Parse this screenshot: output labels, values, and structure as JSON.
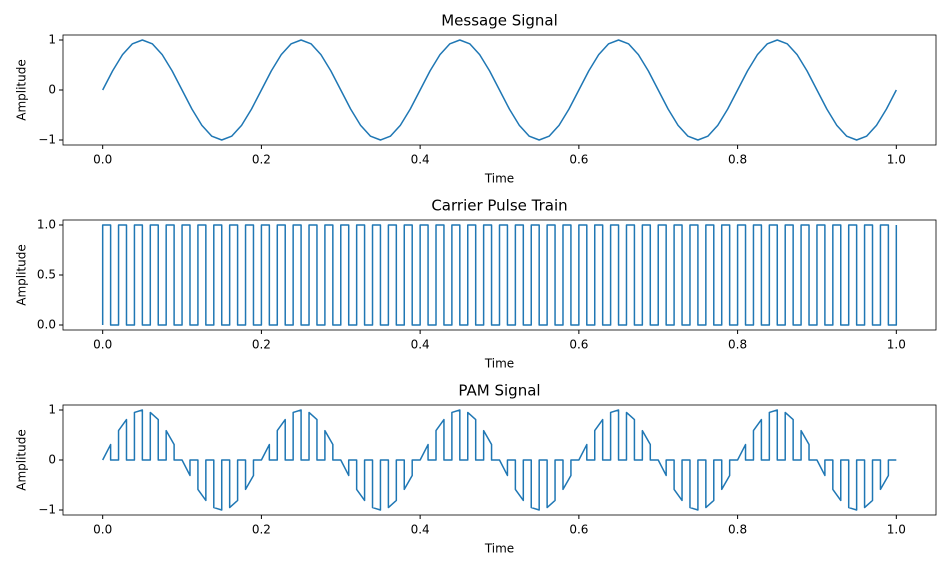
{
  "chart_data": [
    {
      "type": "line",
      "title": "Message Signal",
      "x_label": "Time",
      "y_label": "Amplitude",
      "xlim": [
        -0.05,
        1.05
      ],
      "ylim": [
        -1.1,
        1.1
      ],
      "xticks": [
        {
          "value": 0,
          "label": "0.0"
        },
        {
          "value": 0.2,
          "label": "0.2"
        },
        {
          "value": 0.4,
          "label": "0.4"
        },
        {
          "value": 0.6,
          "label": "0.6"
        },
        {
          "value": 0.8,
          "label": "0.8"
        },
        {
          "value": 1,
          "label": "1.0"
        }
      ],
      "yticks": [
        {
          "value": -1,
          "label": "−1"
        },
        0,
        1
      ],
      "color": "#1f77b4",
      "x": [
        0,
        0.0125,
        0.025,
        0.0375,
        0.05,
        0.0625,
        0.075,
        0.0875,
        0.1,
        0.1125,
        0.125,
        0.1375,
        0.15,
        0.1625,
        0.175,
        0.1875,
        0.2,
        0.2125,
        0.225,
        0.2375,
        0.25,
        0.2625,
        0.275,
        0.2875,
        0.3,
        0.3125,
        0.325,
        0.3375,
        0.35,
        0.3625,
        0.375,
        0.3875,
        0.4,
        0.4125,
        0.425,
        0.4375,
        0.45,
        0.4625,
        0.475,
        0.4875,
        0.5,
        0.5125,
        0.525,
        0.5375,
        0.55,
        0.5625,
        0.575,
        0.5875,
        0.6,
        0.6125,
        0.625,
        0.6375,
        0.65,
        0.6625,
        0.675,
        0.6875,
        0.7,
        0.7125,
        0.725,
        0.7375,
        0.75,
        0.7625,
        0.775,
        0.7875,
        0.8,
        0.8125,
        0.825,
        0.8375,
        0.85,
        0.8625,
        0.875,
        0.8875,
        0.9,
        0.9125,
        0.925,
        0.9375,
        0.95,
        0.9625,
        0.975,
        0.9875,
        1
      ],
      "values": [
        0,
        0.383,
        0.707,
        0.924,
        1,
        0.924,
        0.707,
        0.383,
        0,
        -0.383,
        -0.707,
        -0.924,
        -1,
        -0.924,
        -0.707,
        -0.383,
        0,
        0.383,
        0.707,
        0.924,
        1,
        0.924,
        0.707,
        0.383,
        0,
        -0.383,
        -0.707,
        -0.924,
        -1,
        -0.924,
        -0.707,
        -0.383,
        0,
        0.383,
        0.707,
        0.924,
        1,
        0.924,
        0.707,
        0.383,
        0,
        -0.383,
        -0.707,
        -0.924,
        -1,
        -0.924,
        -0.707,
        -0.383,
        0,
        0.383,
        0.707,
        0.924,
        1,
        0.924,
        0.707,
        0.383,
        0,
        -0.383,
        -0.707,
        -0.924,
        -1,
        -0.924,
        -0.707,
        -0.383,
        0,
        0.383,
        0.707,
        0.924,
        1,
        0.924,
        0.707,
        0.383,
        0,
        -0.383,
        -0.707,
        -0.924,
        -1,
        -0.924,
        -0.707,
        -0.383,
        0
      ]
    },
    {
      "type": "line",
      "title": "Carrier Pulse Train",
      "x_label": "Time",
      "y_label": "Amplitude",
      "xlim": [
        -0.05,
        1.05
      ],
      "ylim": [
        -0.05,
        1.05
      ],
      "xticks": [
        {
          "value": 0,
          "label": "0.0"
        },
        {
          "value": 0.2,
          "label": "0.2"
        },
        {
          "value": 0.4,
          "label": "0.4"
        },
        {
          "value": 0.6,
          "label": "0.6"
        },
        {
          "value": 0.8,
          "label": "0.8"
        },
        {
          "value": 1,
          "label": "1.0"
        }
      ],
      "yticks": [
        {
          "value": 0,
          "label": "0.0"
        },
        {
          "value": 0.5,
          "label": "0.5"
        },
        {
          "value": 1,
          "label": "1.0"
        }
      ],
      "color": "#1f77b4",
      "x": [
        0,
        0,
        0.01,
        0.01,
        0.02,
        0.02,
        0.03,
        0.03,
        0.04,
        0.04,
        0.05,
        0.05,
        0.06,
        0.06,
        0.07,
        0.07,
        0.08,
        0.08,
        0.09,
        0.09,
        0.1,
        0.1,
        0.11,
        0.11,
        0.12,
        0.12,
        0.13,
        0.13,
        0.14,
        0.14,
        0.15,
        0.15,
        0.16,
        0.16,
        0.17,
        0.17,
        0.18,
        0.18,
        0.19,
        0.19,
        0.2,
        0.2,
        0.21,
        0.21,
        0.22,
        0.22,
        0.23,
        0.23,
        0.24,
        0.24,
        0.25,
        0.25,
        0.26,
        0.26,
        0.27,
        0.27,
        0.28,
        0.28,
        0.29,
        0.29,
        0.3,
        0.3,
        0.31,
        0.31,
        0.32,
        0.32,
        0.33,
        0.33,
        0.34,
        0.34,
        0.35,
        0.35,
        0.36,
        0.36,
        0.37,
        0.37,
        0.38,
        0.38,
        0.39,
        0.39,
        0.4,
        0.4,
        0.41,
        0.41,
        0.42,
        0.42,
        0.43,
        0.43,
        0.44,
        0.44,
        0.45,
        0.45,
        0.46,
        0.46,
        0.47,
        0.47,
        0.48,
        0.48,
        0.49,
        0.49,
        0.5,
        0.5,
        0.51,
        0.51,
        0.52,
        0.52,
        0.53,
        0.53,
        0.54,
        0.54,
        0.55,
        0.55,
        0.56,
        0.56,
        0.57,
        0.57,
        0.58,
        0.58,
        0.59,
        0.59,
        0.6,
        0.6,
        0.61,
        0.61,
        0.62,
        0.62,
        0.63,
        0.63,
        0.64,
        0.64,
        0.65,
        0.65,
        0.66,
        0.66,
        0.67,
        0.67,
        0.68,
        0.68,
        0.69,
        0.69,
        0.7,
        0.7,
        0.71,
        0.71,
        0.72,
        0.72,
        0.73,
        0.73,
        0.74,
        0.74,
        0.75,
        0.75,
        0.76,
        0.76,
        0.77,
        0.77,
        0.78,
        0.78,
        0.79,
        0.79,
        0.8,
        0.8,
        0.81,
        0.81,
        0.82,
        0.82,
        0.83,
        0.83,
        0.84,
        0.84,
        0.85,
        0.85,
        0.86,
        0.86,
        0.87,
        0.87,
        0.88,
        0.88,
        0.89,
        0.89,
        0.9,
        0.9,
        0.91,
        0.91,
        0.92,
        0.92,
        0.93,
        0.93,
        0.94,
        0.94,
        0.95,
        0.95,
        0.96,
        0.96,
        0.97,
        0.97,
        0.98,
        0.98,
        0.99,
        0.99,
        1,
        1
      ],
      "values": [
        0,
        1,
        1,
        0,
        0,
        1,
        1,
        0,
        0,
        1,
        1,
        0,
        0,
        1,
        1,
        0,
        0,
        1,
        1,
        0,
        0,
        1,
        1,
        0,
        0,
        1,
        1,
        0,
        0,
        1,
        1,
        0,
        0,
        1,
        1,
        0,
        0,
        1,
        1,
        0,
        0,
        1,
        1,
        0,
        0,
        1,
        1,
        0,
        0,
        1,
        1,
        0,
        0,
        1,
        1,
        0,
        0,
        1,
        1,
        0,
        0,
        1,
        1,
        0,
        0,
        1,
        1,
        0,
        0,
        1,
        1,
        0,
        0,
        1,
        1,
        0,
        0,
        1,
        1,
        0,
        0,
        1,
        1,
        0,
        0,
        1,
        1,
        0,
        0,
        1,
        1,
        0,
        0,
        1,
        1,
        0,
        0,
        1,
        1,
        0,
        0,
        1,
        1,
        0,
        0,
        1,
        1,
        0,
        0,
        1,
        1,
        0,
        0,
        1,
        1,
        0,
        0,
        1,
        1,
        0,
        0,
        1,
        1,
        0,
        0,
        1,
        1,
        0,
        0,
        1,
        1,
        0,
        0,
        1,
        1,
        0,
        0,
        1,
        1,
        0,
        0,
        1,
        1,
        0,
        0,
        1,
        1,
        0,
        0,
        1,
        1,
        0,
        0,
        1,
        1,
        0,
        0,
        1,
        1,
        0,
        0,
        1,
        1,
        0,
        0,
        1,
        1,
        0,
        0,
        1,
        1,
        0,
        0,
        1,
        1,
        0,
        0,
        1,
        1,
        0,
        0,
        1,
        1,
        0,
        0,
        1,
        1,
        0,
        0,
        1,
        1,
        0,
        0,
        1,
        1,
        0,
        0,
        1,
        1,
        0,
        0,
        1
      ]
    },
    {
      "type": "line",
      "title": "PAM Signal",
      "x_label": "Time",
      "y_label": "Amplitude",
      "xlim": [
        -0.05,
        1.05
      ],
      "ylim": [
        -1.1,
        1.1
      ],
      "xticks": [
        {
          "value": 0,
          "label": "0.0"
        },
        {
          "value": 0.2,
          "label": "0.2"
        },
        {
          "value": 0.4,
          "label": "0.4"
        },
        {
          "value": 0.6,
          "label": "0.6"
        },
        {
          "value": 0.8,
          "label": "0.8"
        },
        {
          "value": 1,
          "label": "1.0"
        }
      ],
      "yticks": [
        {
          "value": -1,
          "label": "−1"
        },
        0,
        1
      ],
      "color": "#1f77b4",
      "x": [
        0,
        0,
        0.01,
        0.01,
        0.02,
        0.02,
        0.03,
        0.03,
        0.04,
        0.04,
        0.05,
        0.05,
        0.06,
        0.06,
        0.07,
        0.07,
        0.08,
        0.08,
        0.09,
        0.09,
        0.1,
        0.1,
        0.11,
        0.11,
        0.12,
        0.12,
        0.13,
        0.13,
        0.14,
        0.14,
        0.15,
        0.15,
        0.16,
        0.16,
        0.17,
        0.17,
        0.18,
        0.18,
        0.19,
        0.19,
        0.2,
        0.2,
        0.21,
        0.21,
        0.22,
        0.22,
        0.23,
        0.23,
        0.24,
        0.24,
        0.25,
        0.25,
        0.26,
        0.26,
        0.27,
        0.27,
        0.28,
        0.28,
        0.29,
        0.29,
        0.3,
        0.3,
        0.31,
        0.31,
        0.32,
        0.32,
        0.33,
        0.33,
        0.34,
        0.34,
        0.35,
        0.35,
        0.36,
        0.36,
        0.37,
        0.37,
        0.38,
        0.38,
        0.39,
        0.39,
        0.4,
        0.4,
        0.41,
        0.41,
        0.42,
        0.42,
        0.43,
        0.43,
        0.44,
        0.44,
        0.45,
        0.45,
        0.46,
        0.46,
        0.47,
        0.47,
        0.48,
        0.48,
        0.49,
        0.49,
        0.5,
        0.5,
        0.51,
        0.51,
        0.52,
        0.52,
        0.53,
        0.53,
        0.54,
        0.54,
        0.55,
        0.55,
        0.56,
        0.56,
        0.57,
        0.57,
        0.58,
        0.58,
        0.59,
        0.59,
        0.6,
        0.6,
        0.61,
        0.61,
        0.62,
        0.62,
        0.63,
        0.63,
        0.64,
        0.64,
        0.65,
        0.65,
        0.66,
        0.66,
        0.67,
        0.67,
        0.68,
        0.68,
        0.69,
        0.69,
        0.7,
        0.7,
        0.71,
        0.71,
        0.72,
        0.72,
        0.73,
        0.73,
        0.74,
        0.74,
        0.75,
        0.75,
        0.76,
        0.76,
        0.77,
        0.77,
        0.78,
        0.78,
        0.79,
        0.79,
        0.8,
        0.8,
        0.81,
        0.81,
        0.82,
        0.82,
        0.83,
        0.83,
        0.84,
        0.84,
        0.85,
        0.85,
        0.86,
        0.86,
        0.87,
        0.87,
        0.88,
        0.88,
        0.89,
        0.89,
        0.9,
        0.9,
        0.91,
        0.91,
        0.92,
        0.92,
        0.93,
        0.93,
        0.94,
        0.94,
        0.95,
        0.95,
        0.96,
        0.96,
        0.97,
        0.97,
        0.98,
        0.98,
        0.99,
        0.99,
        1
      ],
      "values": [
        0,
        0,
        0.309,
        0,
        0,
        0.588,
        0.809,
        0,
        0,
        0.951,
        1,
        0,
        0,
        0.951,
        0.809,
        0,
        0,
        0.588,
        0.309,
        0,
        0,
        0,
        -0.309,
        0,
        0,
        -0.588,
        -0.809,
        0,
        0,
        -0.951,
        -1,
        0,
        0,
        -0.951,
        -0.809,
        0,
        0,
        -0.588,
        -0.309,
        0,
        0,
        0,
        0.309,
        0,
        0,
        0.588,
        0.809,
        0,
        0,
        0.951,
        1,
        0,
        0,
        0.951,
        0.809,
        0,
        0,
        0.588,
        0.309,
        0,
        0,
        0,
        -0.309,
        0,
        0,
        -0.588,
        -0.809,
        0,
        0,
        -0.951,
        -1,
        0,
        0,
        -0.951,
        -0.809,
        0,
        0,
        -0.588,
        -0.309,
        0,
        0,
        0,
        0.309,
        0,
        0,
        0.588,
        0.809,
        0,
        0,
        0.951,
        1,
        0,
        0,
        0.951,
        0.809,
        0,
        0,
        0.588,
        0.309,
        0,
        0,
        0,
        -0.309,
        0,
        0,
        -0.588,
        -0.809,
        0,
        0,
        -0.951,
        -1,
        0,
        0,
        -0.951,
        -0.809,
        0,
        0,
        -0.588,
        -0.309,
        0,
        0,
        0,
        0.309,
        0,
        0,
        0.588,
        0.809,
        0,
        0,
        0.951,
        1,
        0,
        0,
        0.951,
        0.809,
        0,
        0,
        0.588,
        0.309,
        0,
        0,
        0,
        -0.309,
        0,
        0,
        -0.588,
        -0.809,
        0,
        0,
        -0.951,
        -1,
        0,
        0,
        -0.951,
        -0.809,
        0,
        0,
        -0.588,
        -0.309,
        0,
        0,
        0,
        0.309,
        0,
        0,
        0.588,
        0.809,
        0,
        0,
        0.951,
        1,
        0,
        0,
        0.951,
        0.809,
        0,
        0,
        0.588,
        0.309,
        0,
        0,
        0,
        -0.309,
        0,
        0,
        -0.588,
        -0.809,
        0,
        0,
        -0.951,
        -1,
        0,
        0,
        -0.951,
        -0.809,
        0,
        0,
        -0.588,
        -0.309,
        0,
        0
      ]
    }
  ]
}
